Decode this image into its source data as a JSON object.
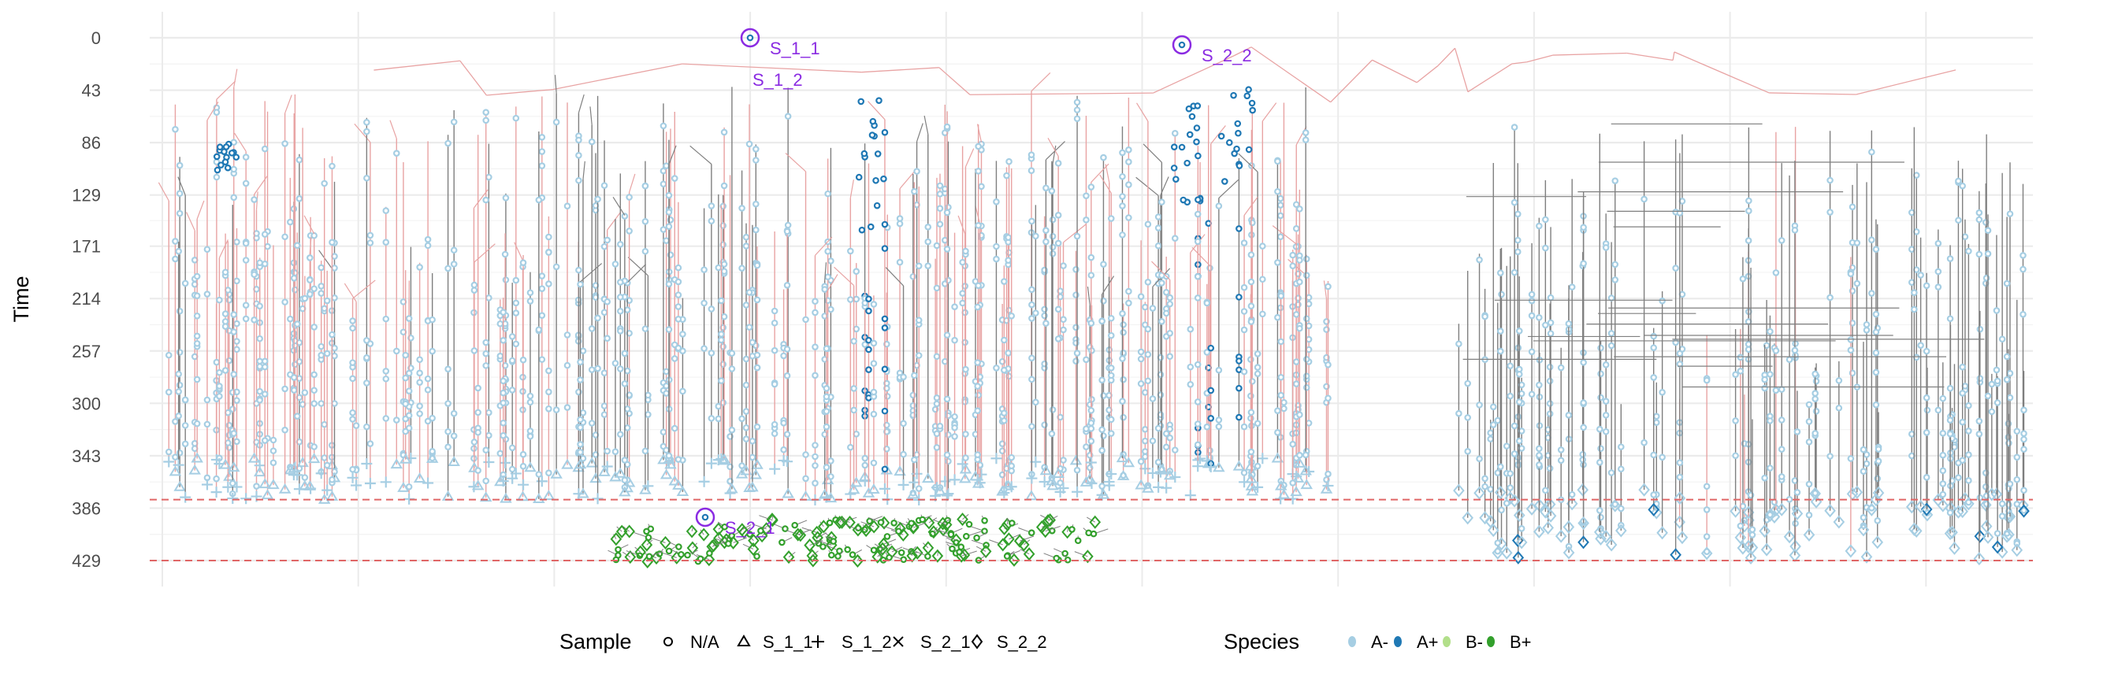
{
  "chart_data": {
    "type": "tree",
    "ylabel": "Time",
    "xlabel": "",
    "y_reversed": true,
    "ylim": [
      0,
      429
    ],
    "y_ticks": [
      "0",
      "43",
      "86",
      "129",
      "171",
      "214",
      "257",
      "300",
      "343",
      "386",
      "429"
    ],
    "grid": true,
    "reference_lines": [
      {
        "y": 379,
        "style": "dashed",
        "color": "#e06666"
      },
      {
        "y": 429,
        "style": "dashed",
        "color": "#e06666"
      }
    ],
    "annotations": [
      {
        "label": "S_1_1",
        "time": 0
      },
      {
        "label": "S_1_2",
        "time": 26
      },
      {
        "label": "S_2_2",
        "time": 4
      },
      {
        "label": "S_2_1",
        "time": 396
      }
    ],
    "edge_colors": {
      "cross": "#e8a3a3",
      "within": "#7f7f7f"
    },
    "legend": {
      "position": "bottom",
      "sample": {
        "title": "Sample",
        "items": [
          {
            "label": "N/A",
            "shape": "circle"
          },
          {
            "label": "S_1_1",
            "shape": "triangle"
          },
          {
            "label": "S_1_2",
            "shape": "plus"
          },
          {
            "label": "S_2_1",
            "shape": "cross"
          },
          {
            "label": "S_2_2",
            "shape": "diamond"
          }
        ]
      },
      "species": {
        "title": "Species",
        "items": [
          {
            "label": "A-",
            "color": "#a6cee3"
          },
          {
            "label": "A+",
            "color": "#1f78b4"
          },
          {
            "label": "B-",
            "color": "#b2df8a"
          },
          {
            "label": "B+",
            "color": "#33a02c"
          }
        ]
      }
    }
  }
}
